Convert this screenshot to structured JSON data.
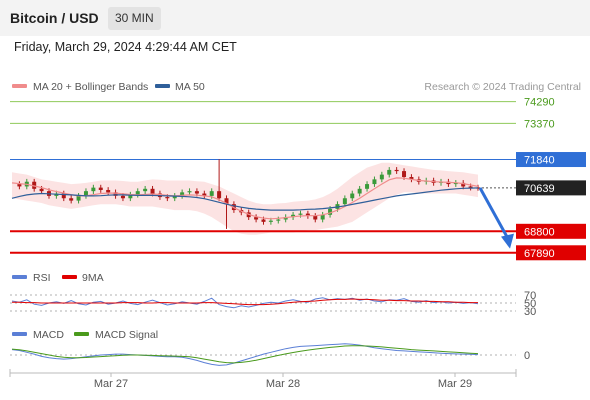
{
  "header": {
    "title": "Bitcoin / USD",
    "timeframe": "30 MIN",
    "datetime": "Friday, March 29, 2024 4:29:44 AM CET"
  },
  "legend": {
    "ma20_label": "MA 20 + Bollinger Bands",
    "ma20_color": "#f08c8c",
    "ma50_label": "MA 50",
    "ma50_color": "#2f5f9a",
    "credit": "Research © 2024 Trading Central"
  },
  "chart_data": {
    "type": "candlestick",
    "x_ticks": [
      "Mar 27",
      "Mar 28",
      "Mar 29"
    ],
    "price_ylim": [
      67500,
      74700
    ],
    "levels": [
      {
        "value": 74290,
        "label": "74290",
        "kind": "target",
        "color": "#8fca5a"
      },
      {
        "value": 73370,
        "label": "73370",
        "kind": "target",
        "color": "#8fca5a"
      },
      {
        "value": 71840,
        "label": "71840",
        "kind": "pivot",
        "color": "#2f6fd6"
      },
      {
        "value": 68800,
        "label": "68800",
        "kind": "support",
        "color": "#e00000"
      },
      {
        "value": 67890,
        "label": "67890",
        "kind": "support",
        "color": "#e00000"
      }
    ],
    "last_price": {
      "value": 70639,
      "label": "70639"
    },
    "forecast_arrow": {
      "from": 70639,
      "to": 68150,
      "color": "#2f6fd6"
    },
    "close_path": [
      70800,
      70700,
      70900,
      70600,
      70500,
      70300,
      70400,
      70200,
      70100,
      70300,
      70500,
      70650,
      70550,
      70450,
      70300,
      70200,
      70350,
      70500,
      70600,
      70400,
      70250,
      70200,
      70300,
      70450,
      70500,
      70400,
      70300,
      70500,
      70200,
      69950,
      69700,
      69600,
      69400,
      69300,
      69200,
      69250,
      69300,
      69400,
      69500,
      69550,
      69450,
      69300,
      69500,
      69750,
      69950,
      70200,
      70400,
      70600,
      70800,
      71000,
      71200,
      71400,
      71350,
      71100,
      71000,
      70900,
      70950,
      70850,
      70900,
      70800,
      70850,
      70700,
      70650,
      70639
    ],
    "ma20": [
      70850,
      70820,
      70790,
      70720,
      70650,
      70560,
      70480,
      70420,
      70350,
      70300,
      70310,
      70350,
      70400,
      70420,
      70420,
      70390,
      70360,
      70340,
      70360,
      70380,
      70360,
      70320,
      70300,
      70320,
      70340,
      70330,
      70300,
      70260,
      70140,
      69980,
      69800,
      69650,
      69520,
      69420,
      69360,
      69330,
      69350,
      69380,
      69420,
      69450,
      69460,
      69460,
      69500,
      69580,
      69700,
      69850,
      70020,
      70200,
      70400,
      70600,
      70800,
      70980,
      71060,
      71050,
      71000,
      70950,
      70930,
      70900,
      70890,
      70870,
      70860,
      70820,
      70760,
      70700
    ],
    "ma50": [
      70200,
      70280,
      70340,
      70380,
      70400,
      70390,
      70370,
      70360,
      70340,
      70320,
      70300,
      70300,
      70310,
      70330,
      70340,
      70340,
      70330,
      70320,
      70320,
      70320,
      70310,
      70300,
      70290,
      70280,
      70260,
      70230,
      70180,
      70110,
      70030,
      69950,
      69880,
      69820,
      69770,
      69740,
      69720,
      69700,
      69700,
      69700,
      69700,
      69710,
      69730,
      69740,
      69760,
      69790,
      69830,
      69880,
      69940,
      70000,
      70060,
      70120,
      70180,
      70240,
      70300,
      70340,
      70380,
      70420,
      70460,
      70500,
      70540,
      70570,
      70600,
      70620,
      70630,
      70640
    ],
    "bb_upper": [
      71300,
      71250,
      71200,
      71100,
      71000,
      70950,
      70900,
      70850,
      70800,
      70820,
      70850,
      70900,
      70950,
      70950,
      70950,
      70930,
      70900,
      70900,
      70950,
      71000,
      70980,
      70950,
      70950,
      70950,
      70950,
      70920,
      70900,
      70800,
      70700,
      70550,
      70400,
      70250,
      70100,
      70000,
      69950,
      69950,
      69980,
      70000,
      70050,
      70080,
      70100,
      70150,
      70250,
      70400,
      70600,
      70850,
      71100,
      71300,
      71500,
      71600,
      71700,
      71700,
      71650,
      71600,
      71550,
      71500,
      71450,
      71400,
      71380,
      71350,
      71320,
      71300,
      71250,
      71200
    ],
    "bb_lower": [
      70200,
      70150,
      70100,
      70050,
      70000,
      69900,
      69850,
      69800,
      69750,
      69800,
      69850,
      69900,
      69950,
      69950,
      69950,
      69900,
      69850,
      69850,
      69850,
      69850,
      69800,
      69750,
      69700,
      69700,
      69700,
      69650,
      69550,
      69400,
      69200,
      69000,
      68800,
      68700,
      68650,
      68650,
      68700,
      68750,
      68750,
      68750,
      68750,
      68800,
      68850,
      68850,
      68900,
      68950,
      69000,
      69100,
      69200,
      69400,
      69600,
      69800,
      70000,
      70200,
      70350,
      70450,
      70450,
      70400,
      70400,
      70400,
      70400,
      70400,
      70400,
      70350,
      70300,
      70250
    ],
    "rsi": {
      "label": "RSI",
      "color": "#5b7fd6",
      "ticks": [
        "70",
        "50",
        "30"
      ],
      "values": [
        55,
        52,
        58,
        47,
        44,
        50,
        53,
        49,
        56,
        48,
        45,
        52,
        54,
        47,
        50,
        55,
        49,
        46,
        52,
        57,
        51,
        45,
        48,
        53,
        50,
        47,
        54,
        62,
        46,
        41,
        38,
        43,
        40,
        44,
        49,
        52,
        50,
        55,
        58,
        54,
        52,
        60,
        63,
        58,
        61,
        59,
        62,
        57,
        60,
        55,
        53,
        58,
        57,
        61,
        54,
        52,
        56,
        51,
        53,
        50,
        52,
        49,
        51,
        48
      ],
      "ma9_label": "9MA",
      "ma9_color": "#e00000",
      "ma9": [
        52,
        52,
        51,
        51,
        50,
        50,
        50,
        50,
        50,
        50,
        50,
        50,
        50,
        50,
        50,
        51,
        51,
        51,
        50,
        50,
        51,
        51,
        50,
        50,
        50,
        50,
        51,
        51,
        50,
        49,
        48,
        47,
        46,
        46,
        46,
        47,
        48,
        50,
        52,
        53,
        54,
        55,
        57,
        58,
        59,
        59,
        60,
        59,
        59,
        58,
        57,
        57,
        56,
        56,
        55,
        55,
        54,
        54,
        53,
        53,
        52,
        52,
        51,
        51
      ]
    },
    "macd": {
      "label": "MACD",
      "color": "#5b7fd6",
      "tick": "0",
      "values": [
        120,
        100,
        60,
        20,
        -30,
        -60,
        -80,
        -90,
        -80,
        -60,
        -40,
        -20,
        0,
        10,
        20,
        20,
        10,
        0,
        -10,
        -20,
        -30,
        -40,
        -40,
        -50,
        -80,
        -120,
        -170,
        -210,
        -230,
        -220,
        -180,
        -130,
        -80,
        -30,
        20,
        60,
        100,
        140,
        170,
        190,
        200,
        210,
        220,
        230,
        240,
        250,
        240,
        220,
        190,
        160,
        140,
        120,
        100,
        90,
        80,
        70,
        60,
        50,
        40,
        30,
        25,
        20,
        15,
        10
      ],
      "signal_label": "MACD Signal",
      "signal_color": "#4a9a1c",
      "signal": [
        130,
        115,
        90,
        60,
        30,
        0,
        -30,
        -50,
        -60,
        -60,
        -55,
        -45,
        -35,
        -25,
        -15,
        -5,
        0,
        0,
        -5,
        -10,
        -15,
        -20,
        -25,
        -30,
        -40,
        -60,
        -90,
        -120,
        -150,
        -170,
        -175,
        -165,
        -145,
        -115,
        -80,
        -45,
        -10,
        25,
        55,
        85,
        110,
        130,
        150,
        170,
        185,
        200,
        205,
        205,
        200,
        190,
        180,
        165,
        150,
        135,
        120,
        110,
        100,
        90,
        80,
        70,
        60,
        50,
        40,
        30
      ]
    }
  }
}
